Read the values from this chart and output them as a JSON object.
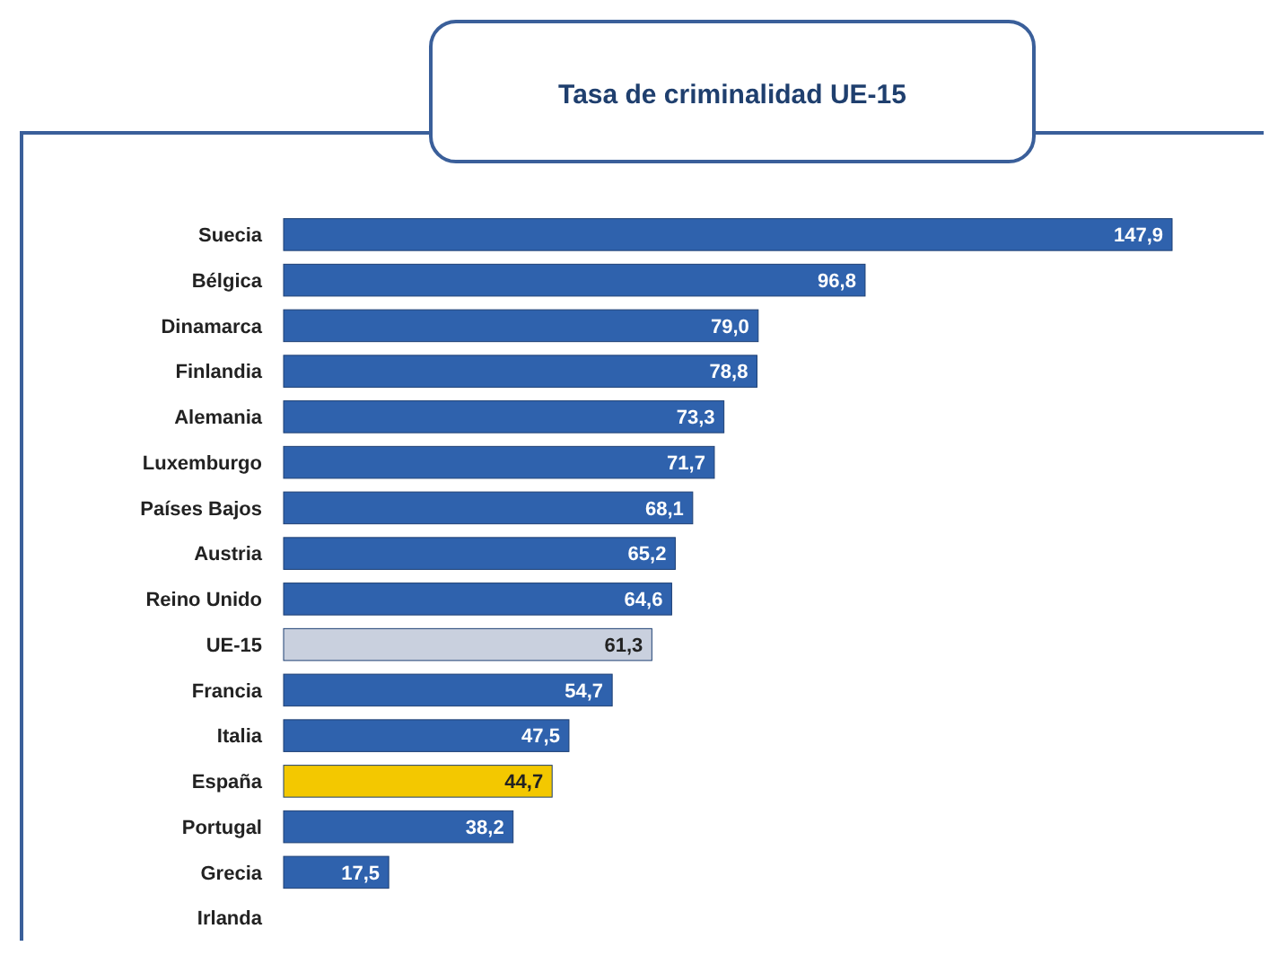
{
  "chart_data": {
    "type": "bar",
    "orientation": "horizontal",
    "title": "Tasa de criminalidad UE-15",
    "categories": [
      "Suecia",
      "Bélgica",
      "Dinamarca",
      "Finlandia",
      "Alemania",
      "Luxemburgo",
      "Países Bajos",
      "Austria",
      "Reino Unido",
      "UE-15",
      "Francia",
      "Italia",
      "España",
      "Portugal",
      "Grecia",
      "Irlanda"
    ],
    "values": [
      147.9,
      96.8,
      79.0,
      78.8,
      73.3,
      71.7,
      68.1,
      65.2,
      64.6,
      61.3,
      54.7,
      47.5,
      44.7,
      38.2,
      17.5,
      null
    ],
    "value_labels": [
      "147,9",
      "96,8",
      "79,0",
      "78,8",
      "73,3",
      "71,7",
      "68,1",
      "65,2",
      "64,6",
      "61,3",
      "54,7",
      "47,5",
      "44,7",
      "38,2",
      "17,5",
      null
    ],
    "colors": [
      "#2f62ad",
      "#2f62ad",
      "#2f62ad",
      "#2f62ad",
      "#2f62ad",
      "#2f62ad",
      "#2f62ad",
      "#2f62ad",
      "#2f62ad",
      "#c9d0de",
      "#2f62ad",
      "#2f62ad",
      "#f3c800",
      "#2f62ad",
      "#2f62ad",
      null
    ]
  }
}
